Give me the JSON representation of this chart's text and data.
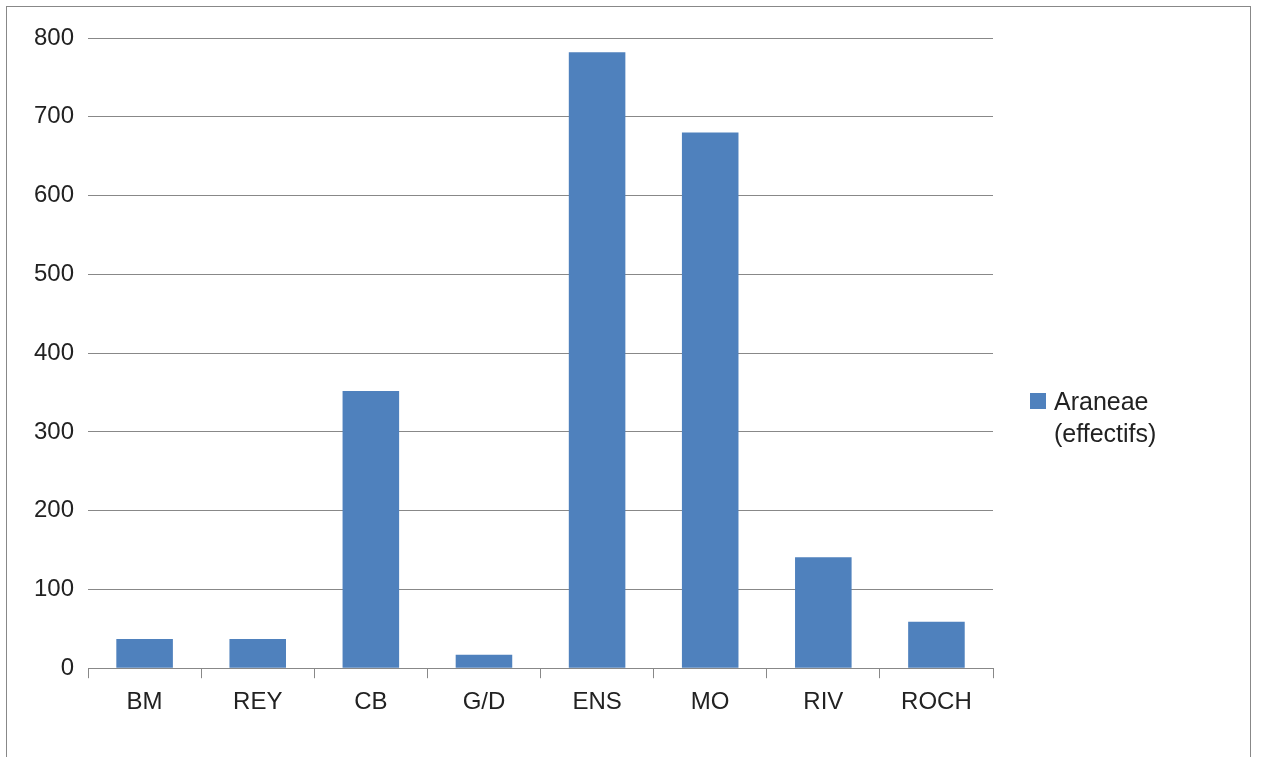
{
  "chart_data": {
    "type": "bar",
    "categories": [
      "BM",
      "REY",
      "CB",
      "G/D",
      "ENS",
      "MO",
      "RIV",
      "ROCH"
    ],
    "series": [
      {
        "name": "Araneae (effectifs)",
        "color": "#4f81bd",
        "values": [
          37,
          37,
          352,
          17,
          782,
          680,
          141,
          59
        ]
      }
    ],
    "ylim": [
      0,
      800
    ],
    "yticks": [
      0,
      100,
      200,
      300,
      400,
      500,
      600,
      700,
      800
    ],
    "grid": "y",
    "legend": "right"
  }
}
